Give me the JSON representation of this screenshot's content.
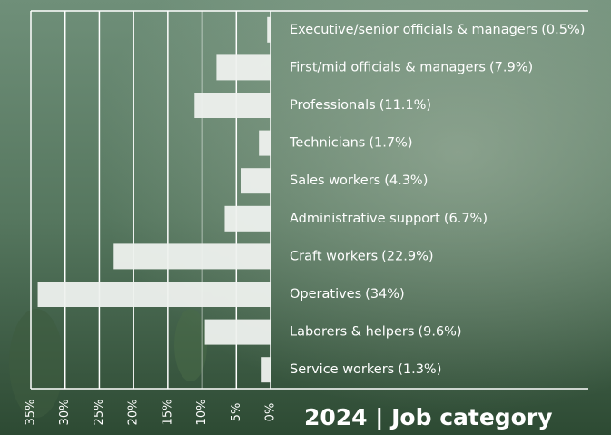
{
  "chart_data": {
    "type": "bar",
    "orientation": "horizontal",
    "title": "2024  |  Job category",
    "categories": [
      "Executive/senior officials & managers",
      "First/mid officials & managers",
      "Professionals",
      "Technicians",
      "Sales workers",
      "Administrative support",
      "Craft workers",
      "Operatives",
      "Laborers & helpers",
      "Service workers"
    ],
    "values": [
      0.5,
      7.9,
      11.1,
      1.7,
      4.3,
      6.7,
      22.9,
      34,
      9.6,
      1.3
    ],
    "value_labels": [
      "(0.5%)",
      "(7.9%)",
      "(11.1%)",
      "(1.7%)",
      "(4.3%)",
      "(6.7%)",
      "(22.9%)",
      "(34%)",
      "(9.6%)",
      "(1.3%)"
    ],
    "color": "#eef1ee",
    "xlim": [
      35,
      0
    ],
    "xticks": [
      {
        "value": 35,
        "label": "35%"
      },
      {
        "value": 30,
        "label": "30%"
      },
      {
        "value": 25,
        "label": "25%"
      },
      {
        "value": 20,
        "label": "20%"
      },
      {
        "value": 15,
        "label": "15%"
      },
      {
        "value": 10,
        "label": "10%"
      },
      {
        "value": 5,
        "label": "5%"
      },
      {
        "value": 0,
        "label": "0%"
      }
    ],
    "grid": true
  }
}
